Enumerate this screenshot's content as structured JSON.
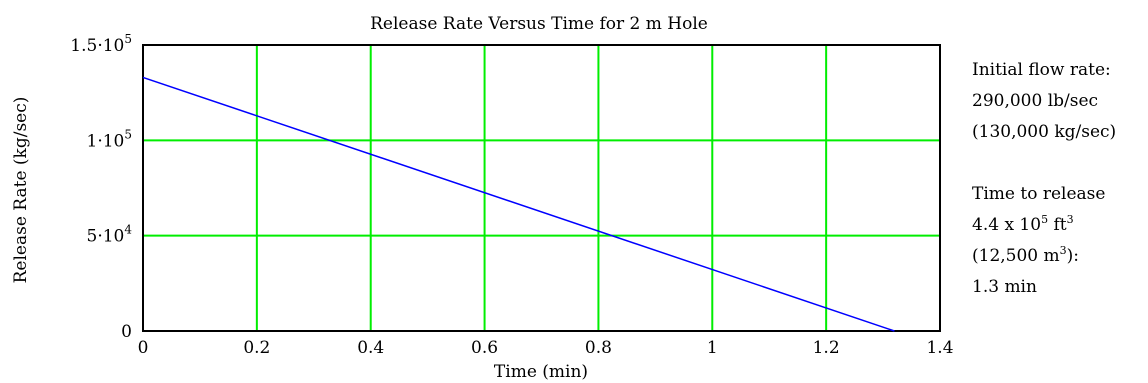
{
  "chart_data": {
    "type": "line",
    "title": "Release Rate Versus Time for 2 m Hole",
    "xlabel": "Time (min)",
    "ylabel": "Release Rate (kg/sec)",
    "xlim": [
      0,
      1.4
    ],
    "ylim": [
      0,
      150000
    ],
    "x_ticks": [
      0,
      0.2,
      0.4,
      0.6,
      0.8,
      1,
      1.2,
      1.4
    ],
    "x_tick_labels": [
      "0",
      "0.2",
      "0.4",
      "0.6",
      "0.8",
      "1",
      "1.2",
      "1.4"
    ],
    "y_ticks": [
      0,
      50000,
      100000,
      150000
    ],
    "y_tick_labels": [
      {
        "mantissa": "0",
        "exponent": ""
      },
      {
        "mantissa": "5·10",
        "exponent": "4"
      },
      {
        "mantissa": "1·10",
        "exponent": "5"
      },
      {
        "mantissa": "1.5·10",
        "exponent": "5"
      }
    ],
    "grid": true,
    "series": [
      {
        "x": [
          0,
          1.32
        ],
        "y": [
          133000,
          0
        ]
      }
    ],
    "colors": {
      "grid": "#00ee00",
      "line": "#0000ff",
      "axes": "#000000"
    }
  },
  "notes": {
    "line1": "Initial flow rate:",
    "line2": "290,000 lb/sec",
    "line3": "(130,000 kg/sec)",
    "line4": "Time to release",
    "line5_pre": "4.4 x 10",
    "line5_exp": "5",
    "line5_mid": " ft",
    "line5_exp2": "3",
    "line6_pre": "(12,500 m",
    "line6_exp": "3",
    "line6_post": "):",
    "line7": "1.3 min"
  }
}
